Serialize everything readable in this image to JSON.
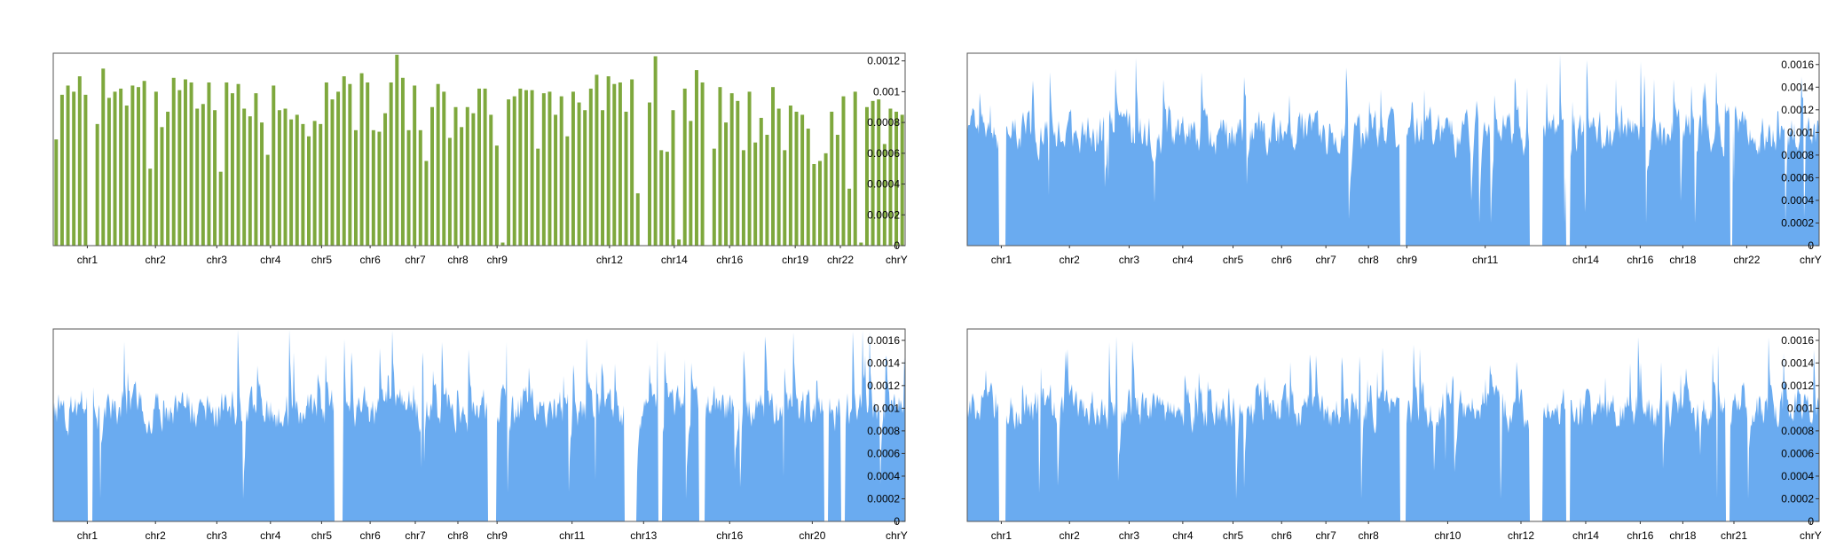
{
  "colors": {
    "bar": "#7ea83d",
    "area": "#6aabf0",
    "frame": "#555555",
    "tick": "#333333",
    "text": "#000000"
  },
  "chart_data": [
    {
      "type": "bar",
      "y_ticks": [
        "0",
        "0.0002",
        "0.0004",
        "0.0006",
        "0.0008",
        "0.001",
        "0.0012"
      ],
      "ylim": [
        0,
        0.00125
      ],
      "grid": false,
      "x_tick_labels": [
        "chr1",
        "chr2",
        "chr3",
        "chr4",
        "chr5",
        "chr6",
        "chr7",
        "chr8",
        "chr9",
        "chr12",
        "chr14",
        "chr16",
        "chr19",
        "chr22",
        "chrY"
      ],
      "x_tick_positions": [
        0.04,
        0.12,
        0.192,
        0.255,
        0.315,
        0.372,
        0.425,
        0.475,
        0.521,
        0.653,
        0.729,
        0.794,
        0.871,
        0.924,
        0.99
      ],
      "values": [
        0.00069,
        0.00098,
        0.00104,
        0.001,
        0.0011,
        0.00098,
        0,
        0.00079,
        0.00115,
        0.00096,
        0.001,
        0.00102,
        0.00091,
        0.00104,
        0.00103,
        0.00107,
        0.0005,
        0.001,
        0.00077,
        0.00087,
        0.00109,
        0.00101,
        0.00108,
        0.00106,
        0.00089,
        0.00092,
        0.00106,
        0.00088,
        0.00048,
        0.00106,
        0.00099,
        0.00105,
        0.00089,
        0.00084,
        0.00099,
        0.0008,
        0.00059,
        0.00104,
        0.00088,
        0.00089,
        0.00082,
        0.00085,
        0.00079,
        0.00071,
        0.00081,
        0.00079,
        0.00106,
        0.00095,
        0.001,
        0.0011,
        0.00105,
        0.00075,
        0.00112,
        0.00106,
        0.00075,
        0.00074,
        0.00086,
        0.00106,
        0.00124,
        0.00109,
        0.00075,
        0.00104,
        0.00075,
        0.00055,
        0.0009,
        0.00105,
        0.001,
        0.0007,
        0.0009,
        0.00077,
        0.0009,
        0.00086,
        0.00102,
        0.00102,
        0.00085,
        0.00065,
        2e-05,
        0.00095,
        0.00097,
        0.00102,
        0.00101,
        0.00101,
        0.00063,
        0.00099,
        0.001,
        0.00085,
        0.00097,
        0.00071,
        0.001,
        0.00093,
        0.00088,
        0.00102,
        0.00111,
        0.00088,
        0.0011,
        0.00105,
        0.00106,
        0.00087,
        0.00108,
        0.00034,
        0,
        0.00093,
        0.00123,
        0.00062,
        0.00061,
        0.00088,
        4e-05,
        0.00102,
        0.00081,
        0.00114,
        0.00106,
        0,
        0.00063,
        0.00103,
        0.0008,
        0.00099,
        0.00094,
        0.00062,
        0.001,
        0.00067,
        0.00083,
        0.00072,
        0.00103,
        0.00089,
        0.00062,
        0.00091,
        0.00087,
        0.00085,
        0.00076,
        0.00053,
        0.00055,
        0.0006,
        0.00087,
        0.00072,
        0.00097,
        0.00037,
        0.001,
        2e-05,
        0.0009,
        0.00094,
        0.00095,
        0.00066,
        0.00089,
        0.00087,
        0.00085
      ]
    },
    {
      "type": "area",
      "y_ticks": [
        "0",
        "0.0002",
        "0.0004",
        "0.0006",
        "0.0008",
        "0.001",
        "0.0012",
        "0.0014",
        "0.0016"
      ],
      "ylim": [
        0,
        0.0017
      ],
      "grid": false,
      "x_tick_labels": [
        "chr1",
        "chr2",
        "chr3",
        "chr4",
        "chr5",
        "chr6",
        "chr7",
        "chr8",
        "chr9",
        "chr11",
        "chr14",
        "chr16",
        "chr18",
        "chr22",
        "chrY"
      ],
      "x_tick_positions": [
        0.04,
        0.12,
        0.19,
        0.253,
        0.312,
        0.369,
        0.421,
        0.471,
        0.516,
        0.608,
        0.726,
        0.79,
        0.84,
        0.915,
        0.99
      ],
      "baseline_level": 0.0009,
      "peak_level": 0.0017,
      "gaps": [
        [
          0.037,
          0.045
        ],
        [
          0.508,
          0.515
        ],
        [
          0.66,
          0.675
        ],
        [
          0.703,
          0.708
        ],
        [
          0.895,
          0.898
        ]
      ]
    },
    {
      "type": "area",
      "y_ticks": [
        "0",
        "0.0002",
        "0.0004",
        "0.0006",
        "0.0008",
        "0.001",
        "0.0012",
        "0.0014",
        "0.0016"
      ],
      "ylim": [
        0,
        0.0017
      ],
      "grid": false,
      "x_tick_labels": [
        "chr1",
        "chr2",
        "chr3",
        "chr4",
        "chr5",
        "chr6",
        "chr7",
        "chr8",
        "chr9",
        "chr11",
        "chr13",
        "chr16",
        "chr20",
        "chrY"
      ],
      "x_tick_positions": [
        0.04,
        0.12,
        0.192,
        0.255,
        0.315,
        0.372,
        0.425,
        0.475,
        0.521,
        0.609,
        0.693,
        0.794,
        0.891,
        0.99
      ],
      "baseline_level": 0.0009,
      "peak_level": 0.0017,
      "gaps": [
        [
          0.04,
          0.046
        ],
        [
          0.33,
          0.34
        ],
        [
          0.51,
          0.52
        ],
        [
          0.67,
          0.685
        ],
        [
          0.71,
          0.715
        ],
        [
          0.758,
          0.765
        ],
        [
          0.905,
          0.91
        ],
        [
          0.925,
          0.93
        ]
      ]
    },
    {
      "type": "area",
      "y_ticks": [
        "0",
        "0.0002",
        "0.0004",
        "0.0006",
        "0.0008",
        "0.001",
        "0.0012",
        "0.0014",
        "0.0016"
      ],
      "ylim": [
        0,
        0.0017
      ],
      "grid": false,
      "x_tick_labels": [
        "chr1",
        "chr2",
        "chr3",
        "chr4",
        "chr5",
        "chr6",
        "chr7",
        "chr8",
        "chr10",
        "chr12",
        "chr14",
        "chr16",
        "chr18",
        "chr21",
        "chrY"
      ],
      "x_tick_positions": [
        0.04,
        0.12,
        0.19,
        0.253,
        0.312,
        0.369,
        0.421,
        0.471,
        0.564,
        0.65,
        0.726,
        0.79,
        0.84,
        0.9,
        0.99
      ],
      "baseline_level": 0.0009,
      "peak_level": 0.0017,
      "gaps": [
        [
          0.037,
          0.045
        ],
        [
          0.508,
          0.515
        ],
        [
          0.66,
          0.675
        ],
        [
          0.703,
          0.708
        ],
        [
          0.89,
          0.895
        ]
      ]
    }
  ]
}
